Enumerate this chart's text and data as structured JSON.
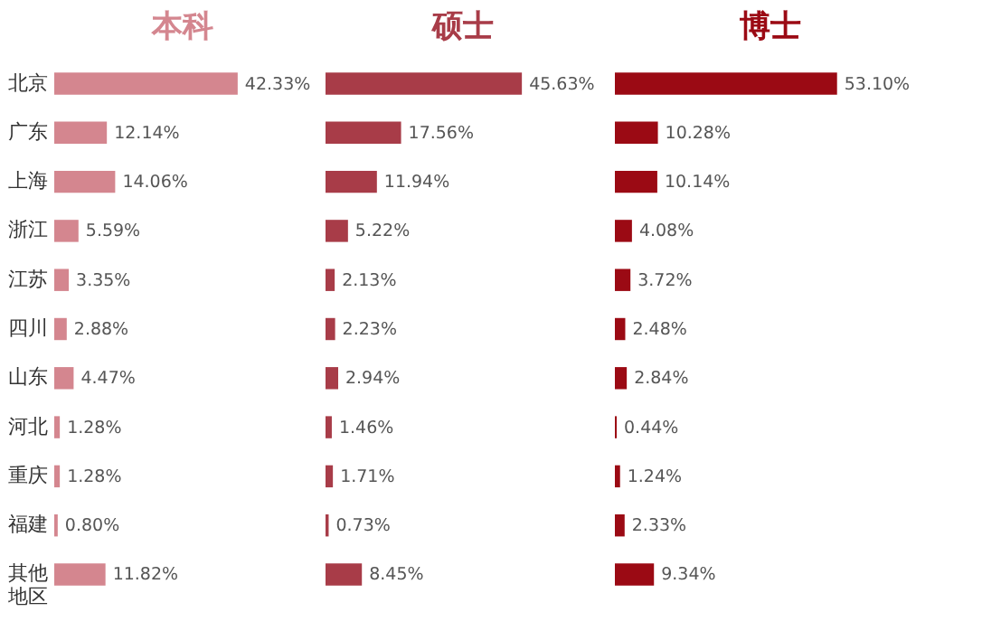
{
  "chart_data": [
    {
      "type": "bar",
      "orientation": "horizontal",
      "title": "本科",
      "tick_labels": "y",
      "categories": [
        "北京",
        "广东",
        "上海",
        "浙江",
        "江苏",
        "四川",
        "山东",
        "河北",
        "重庆",
        "福建",
        "其他地区"
      ],
      "color": "#d4868f",
      "values": [
        42.33,
        12.14,
        14.06,
        5.59,
        3.35,
        2.88,
        4.47,
        1.28,
        1.28,
        0.8,
        11.82
      ],
      "value_labels": [
        "42.33%",
        "12.14%",
        "14.06%",
        "5.59%",
        "3.35%",
        "2.88%",
        "4.47%",
        "1.28%",
        "1.28%",
        "0.80%",
        "11.82%"
      ]
    },
    {
      "type": "bar",
      "orientation": "horizontal",
      "title": "硕士",
      "tick_labels": false,
      "categories": [
        "北京",
        "广东",
        "上海",
        "浙江",
        "江苏",
        "四川",
        "山东",
        "河北",
        "重庆",
        "福建",
        "其他地区"
      ],
      "color": "#a83c48",
      "values": [
        45.63,
        17.56,
        11.94,
        5.22,
        2.13,
        2.23,
        2.94,
        1.46,
        1.71,
        0.73,
        8.45
      ],
      "value_labels": [
        "45.63%",
        "17.56%",
        "11.94%",
        "5.22%",
        "2.13%",
        "2.23%",
        "2.94%",
        "1.46%",
        "1.71%",
        "0.73%",
        "8.45%"
      ]
    },
    {
      "type": "bar",
      "orientation": "horizontal",
      "title": "博士",
      "tick_labels": false,
      "categories": [
        "北京",
        "广东",
        "上海",
        "浙江",
        "江苏",
        "四川",
        "山东",
        "河北",
        "重庆",
        "福建",
        "其他地区"
      ],
      "color": "#9b0a14",
      "values": [
        53.1,
        10.28,
        10.14,
        4.08,
        3.72,
        2.48,
        2.84,
        0.44,
        1.24,
        2.33,
        9.34
      ],
      "value_labels": [
        "53.10%",
        "10.28%",
        "10.14%",
        "4.08%",
        "3.72%",
        "2.48%",
        "2.84%",
        "0.44%",
        "1.24%",
        "2.33%",
        "9.34%"
      ]
    }
  ]
}
